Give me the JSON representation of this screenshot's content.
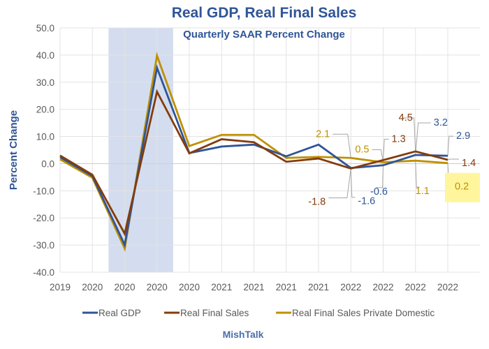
{
  "chart_data": {
    "type": "line",
    "title": "Real GDP, Real Final Sales",
    "subtitle": "Quarterly SAAR Percent Change",
    "xlabel": "",
    "ylabel": "Percent Change",
    "ylim": [
      -40,
      50
    ],
    "yticks": [
      "50.0",
      "40.0",
      "30.0",
      "20.0",
      "10.0",
      "0.0",
      "-10.0",
      "-20.0",
      "-30.0",
      "-40.0"
    ],
    "ytick_values": [
      50,
      40,
      30,
      20,
      10,
      0,
      -10,
      -20,
      -30,
      -40
    ],
    "grid": true,
    "legend_position": "bottom",
    "recession_shading": {
      "from_index": 1.5,
      "to_index": 3.5,
      "color": "#d3ddef"
    },
    "categories": [
      "2019",
      "2020",
      "2020",
      "2020",
      "2020",
      "2021",
      "2021",
      "2021",
      "2021",
      "2022",
      "2022",
      "2022",
      "2022"
    ],
    "series": [
      {
        "name": "Real GDP",
        "color": "#2f5597",
        "values": [
          2.4,
          -4.6,
          -29.9,
          35.3,
          3.9,
          6.3,
          7.0,
          2.7,
          7.0,
          -1.6,
          -0.6,
          3.2,
          2.9
        ]
      },
      {
        "name": "Real Final Sales",
        "color": "#843c0c",
        "values": [
          3.0,
          -4.1,
          -25.8,
          26.5,
          3.8,
          9.0,
          7.9,
          0.7,
          1.9,
          -1.8,
          1.3,
          4.5,
          1.4
        ]
      },
      {
        "name": "Real Final Sales Private Domestic",
        "color": "#bf9000",
        "values": [
          1.6,
          -5.2,
          -31.3,
          39.8,
          6.5,
          10.6,
          10.6,
          2.1,
          2.5,
          2.1,
          0.5,
          1.1,
          0.2
        ]
      }
    ],
    "annotations": [
      {
        "text": "2.1",
        "series": 2,
        "index": 9,
        "color": "#bf9000"
      },
      {
        "text": "-1.8",
        "series": 1,
        "index": 9,
        "color": "#843c0c"
      },
      {
        "text": "-1.6",
        "series": 0,
        "index": 9,
        "color": "#2f5597"
      },
      {
        "text": "0.5",
        "series": 2,
        "index": 10,
        "color": "#bf9000"
      },
      {
        "text": "1.3",
        "series": 1,
        "index": 10,
        "color": "#843c0c"
      },
      {
        "text": "-0.6",
        "series": 0,
        "index": 10,
        "color": "#2f5597"
      },
      {
        "text": "4.5",
        "series": 1,
        "index": 11,
        "color": "#843c0c"
      },
      {
        "text": "3.2",
        "series": 0,
        "index": 11,
        "color": "#2f5597"
      },
      {
        "text": "1.1",
        "series": 2,
        "index": 11,
        "color": "#bf9000"
      },
      {
        "text": "2.9",
        "series": 0,
        "index": 12,
        "color": "#2f5597"
      },
      {
        "text": "1.4",
        "series": 1,
        "index": 12,
        "color": "#843c0c"
      },
      {
        "text": "0.2",
        "series": 2,
        "index": 12,
        "color": "#bf9000",
        "highlight": "#fff59d"
      }
    ],
    "source": "MishTalk"
  }
}
